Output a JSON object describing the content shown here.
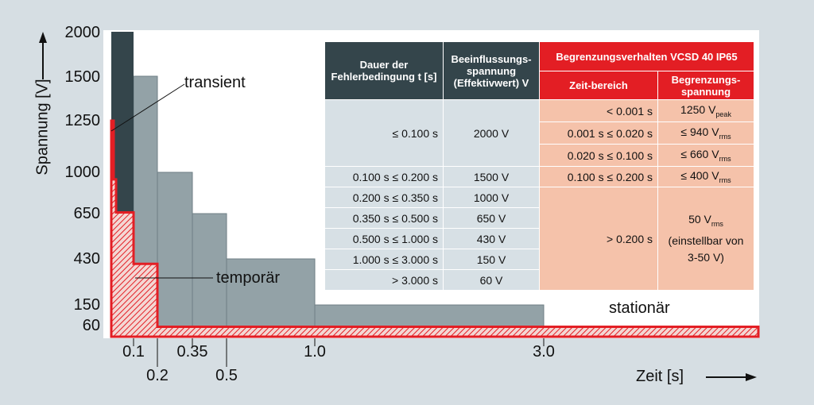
{
  "chart_data": {
    "type": "bar",
    "xlabel": "Zeit [s]",
    "ylabel": "Spannung [V]",
    "y_ticks": [
      "2000",
      "1500",
      "1250",
      "1000",
      "650",
      "430",
      "150",
      "60"
    ],
    "x_ticks_upper": [
      "0.1",
      "0.35",
      "1.0",
      "3.0"
    ],
    "x_ticks_lower": [
      "0.2",
      "0.5"
    ],
    "series": [
      {
        "name": "Beeinflussungsspannung (Effektivwert) V",
        "color": "#93a2a7",
        "steps": [
          {
            "x0": 0.1,
            "x1": 0.2,
            "y": 1500
          },
          {
            "x0": 0.2,
            "x1": 0.35,
            "y": 1000
          },
          {
            "x0": 0.35,
            "x1": 0.5,
            "y": 650
          },
          {
            "x0": 0.5,
            "x1": 1.0,
            "y": 430
          },
          {
            "x0": 1.0,
            "x1": 3.0,
            "y": 150
          },
          {
            "x0": 3.0,
            "x1": null,
            "y": 60
          }
        ]
      },
      {
        "name": "transient",
        "color": "#34454b",
        "steps": [
          {
            "x0": 0.0,
            "x1": 0.1,
            "y": 2000
          }
        ]
      },
      {
        "name": "Begrenzungsverhalten VCSD 40 IP65",
        "color": "#e31e24",
        "steps": [
          {
            "x0": 0.0,
            "x1": 0.001,
            "y": 1250
          },
          {
            "x0": 0.001,
            "x1": 0.02,
            "y": 940
          },
          {
            "x0": 0.02,
            "x1": 0.1,
            "y": 660
          },
          {
            "x0": 0.1,
            "x1": 0.2,
            "y": 400
          },
          {
            "x0": 0.2,
            "x1": null,
            "y": 50
          }
        ]
      }
    ],
    "annotations": [
      "transient",
      "temporär",
      "stationär"
    ]
  },
  "table": {
    "headers": {
      "dauer": "Dauer der Fehlerbedingung t [s]",
      "beeinfl": "Beeinflussungs-spannung (Effektivwert) V",
      "begrenzung": "Begrenzungsverhalten VCSD 40 IP65",
      "zeitbereich": "Zeit-bereich",
      "begrenzungsspannung": "Begrenzungs-spannung"
    },
    "rows": [
      {
        "dauer": "≤ 0.100 s",
        "spannung": "2000 V"
      },
      {
        "dauer": "0.100 s ≤ 0.200 s",
        "spannung": "1500 V"
      },
      {
        "dauer": "0.200 s ≤ 0.350 s",
        "spannung": "1000 V"
      },
      {
        "dauer": "0.350 s ≤ 0.500 s",
        "spannung": "650 V"
      },
      {
        "dauer": "0.500 s ≤ 1.000 s",
        "spannung": "430 V"
      },
      {
        "dauer": "1.000 s ≤ 3.000 s",
        "spannung": "150 V"
      },
      {
        "dauer": "> 3.000 s",
        "spannung": "60 V"
      }
    ],
    "limit_rows": [
      {
        "zeit": "< 0.001 s",
        "wert": "1250 V",
        "sub": "peak"
      },
      {
        "zeit": "0.001 s ≤ 0.020 s",
        "wert": "≤  940 V",
        "sub": "rms"
      },
      {
        "zeit": "0.020 s ≤ 0.100 s",
        "wert": "≤  660 V",
        "sub": "rms"
      },
      {
        "zeit": "0.100 s ≤ 0.200 s",
        "wert": "≤  400 V",
        "sub": "rms"
      },
      {
        "zeit": "> 0.200 s",
        "wert": "50 V",
        "sub": "rms",
        "extra": "(einstellbar von 3-50 V)"
      }
    ]
  }
}
